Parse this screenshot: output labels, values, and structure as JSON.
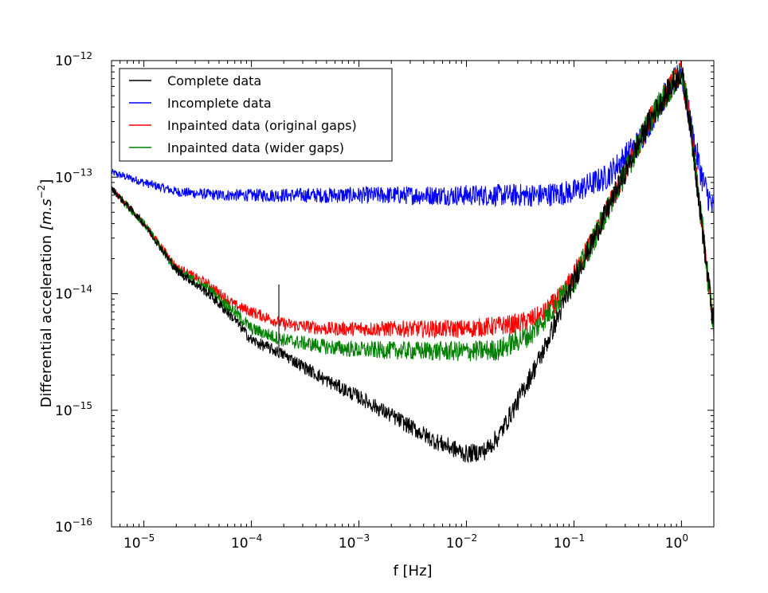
{
  "chart_data": {
    "type": "line",
    "xlabel": "f [Hz]",
    "ylabel_base": "Differential acceleration",
    "ylabel_unit": "[m.s",
    "ylabel_unit_exp": "−2",
    "ylabel_unit_close": "]",
    "xscale": "log",
    "yscale": "log",
    "xlim": [
      5e-06,
      2
    ],
    "ylim": [
      1e-16,
      1e-12
    ],
    "grid": false,
    "legend_position": "top-left",
    "x_ticks": [
      {
        "base": "10",
        "exp": "-5",
        "value": 1e-05
      },
      {
        "base": "10",
        "exp": "-4",
        "value": 0.0001
      },
      {
        "base": "10",
        "exp": "-3",
        "value": 0.001
      },
      {
        "base": "10",
        "exp": "-2",
        "value": 0.01
      },
      {
        "base": "10",
        "exp": "-1",
        "value": 0.1
      },
      {
        "base": "10",
        "exp": "0",
        "value": 1
      }
    ],
    "y_ticks": [
      {
        "base": "10",
        "exp": "-16",
        "value": 1e-16
      },
      {
        "base": "10",
        "exp": "-15",
        "value": 1e-15
      },
      {
        "base": "10",
        "exp": "-14",
        "value": 1e-14
      },
      {
        "base": "10",
        "exp": "-13",
        "value": 1e-13
      },
      {
        "base": "10",
        "exp": "-12",
        "value": 1e-12
      }
    ],
    "series": [
      {
        "name": "Complete data",
        "color": "#000000",
        "noise_dex": 0.08,
        "x": [
          5e-06,
          1e-05,
          2e-05,
          4e-05,
          7e-05,
          0.0001,
          0.0002,
          0.0005,
          0.001,
          0.002,
          0.005,
          0.01,
          0.015,
          0.02,
          0.03,
          0.05,
          0.1,
          0.2,
          0.5,
          0.8,
          1.0,
          1.2,
          1.5,
          2.0
        ],
        "y": [
          8e-14,
          4e-14,
          1.6e-14,
          1e-14,
          6e-15,
          4e-15,
          3e-15,
          1.8e-15,
          1.3e-15,
          9e-16,
          5.5e-16,
          4.2e-16,
          4.5e-16,
          6e-16,
          1.2e-15,
          3e-15,
          1.3e-14,
          5e-14,
          3e-13,
          6e-13,
          8e-13,
          3e-13,
          5e-14,
          5e-15
        ]
      },
      {
        "name": "Incomplete data",
        "color": "#0000ff",
        "noise_dex": 0.09,
        "x": [
          5e-06,
          1e-05,
          2e-05,
          5e-05,
          0.0001,
          0.001,
          0.01,
          0.05,
          0.1,
          0.2,
          0.4,
          0.7,
          1.0,
          1.3,
          1.6,
          2.0
        ],
        "y": [
          1.1e-13,
          9e-14,
          7.5e-14,
          7e-14,
          7e-14,
          7e-14,
          7e-14,
          7e-14,
          7.5e-14,
          1e-13,
          2e-13,
          5e-13,
          8e-13,
          2e-13,
          9e-14,
          5e-14
        ]
      },
      {
        "name": "Inpainted data (original gaps)",
        "color": "#ff0000",
        "noise_dex": 0.08,
        "x": [
          5e-06,
          1e-05,
          2e-05,
          4e-05,
          7e-05,
          0.0001,
          0.0002,
          0.0005,
          0.001,
          0.01,
          0.03,
          0.05,
          0.08,
          0.12,
          0.2,
          0.5,
          0.8,
          1.0,
          1.2,
          1.5,
          2.0
        ],
        "y": [
          8e-14,
          4e-14,
          1.7e-14,
          1.2e-14,
          8e-15,
          7e-15,
          5.5e-15,
          5e-15,
          5e-15,
          5e-15,
          5.5e-15,
          6.5e-15,
          1e-14,
          2e-14,
          5e-14,
          3e-13,
          6e-13,
          8e-13,
          3e-13,
          5e-14,
          5e-15
        ]
      },
      {
        "name": "Inpainted data (wider gaps)",
        "color": "#008000",
        "noise_dex": 0.09,
        "x": [
          5e-06,
          1e-05,
          2e-05,
          4e-05,
          7e-05,
          0.0001,
          0.0002,
          0.0005,
          0.001,
          0.01,
          0.02,
          0.04,
          0.06,
          0.1,
          0.2,
          0.5,
          0.8,
          1.0,
          1.2,
          1.5,
          2.0
        ],
        "y": [
          8e-14,
          4e-14,
          1.6e-14,
          1.1e-14,
          7e-15,
          5e-15,
          4e-15,
          3.5e-15,
          3.3e-15,
          3.2e-15,
          3.3e-15,
          4.5e-15,
          7e-15,
          1.3e-14,
          5e-14,
          3e-13,
          6e-13,
          8e-13,
          3e-13,
          5e-14,
          5e-15
        ]
      }
    ],
    "spike": {
      "x": 0.00018,
      "y_peak": 1.2e-14
    }
  }
}
